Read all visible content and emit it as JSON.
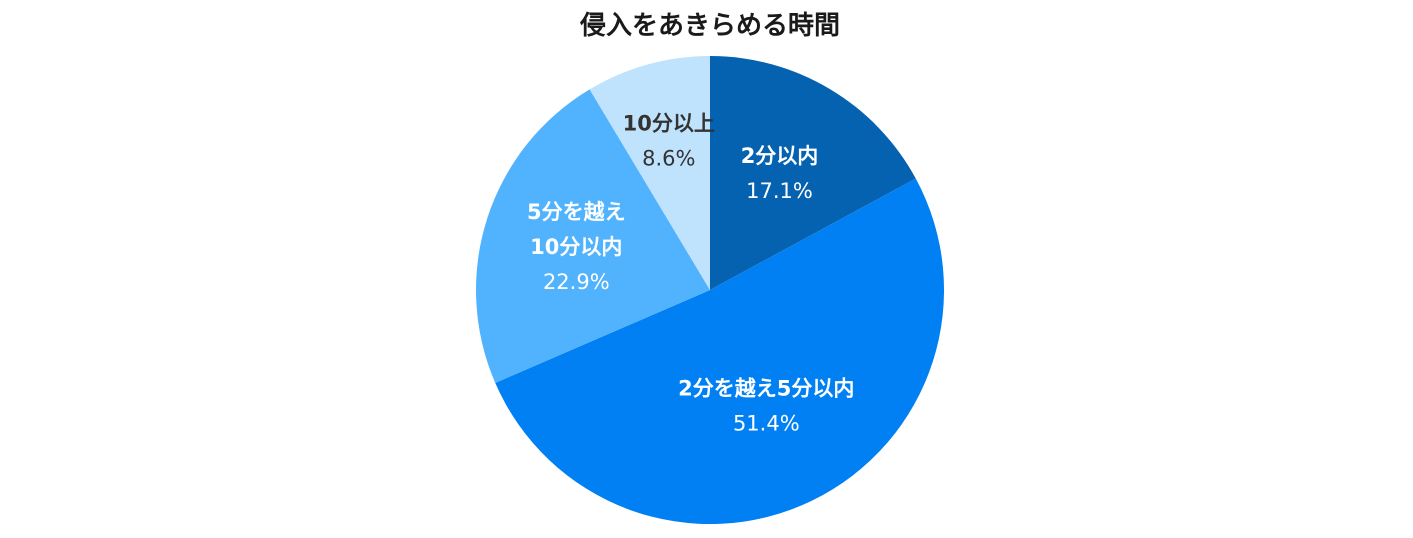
{
  "chart_data": {
    "type": "pie",
    "title": "侵入をあきらめる時間",
    "slices": [
      {
        "name_lines": [
          "2分以内"
        ],
        "value": 17.1,
        "value_label": "17.1%",
        "color": "#0562b0",
        "text_color": "#ffffff"
      },
      {
        "name_lines": [
          "2分を越え5分以内"
        ],
        "value": 51.4,
        "value_label": "51.4%",
        "color": "#0180f4",
        "text_color": "#ffffff"
      },
      {
        "name_lines": [
          "5分を越え",
          "10分以内"
        ],
        "value": 22.9,
        "value_label": "22.9%",
        "color": "#51b3fd",
        "text_color": "#ffffff"
      },
      {
        "name_lines": [
          "10分以上"
        ],
        "value": 8.6,
        "value_label": "8.6%",
        "color": "#bfe2fd",
        "text_color": "#333333"
      }
    ],
    "start_angle": "12 o'clock",
    "direction": "clockwise",
    "legend": "none"
  }
}
